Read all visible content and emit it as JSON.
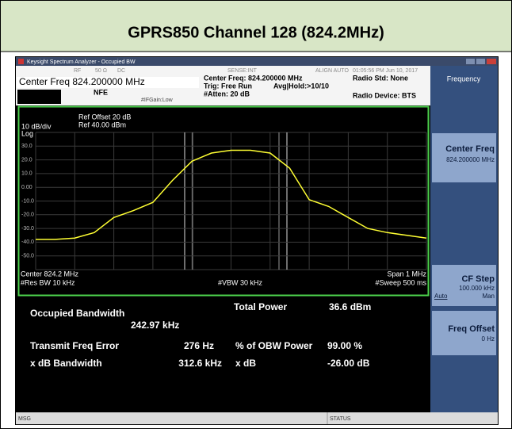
{
  "header": {
    "title": "GPRS850 Channel 128 (824.2MHz)"
  },
  "window": {
    "title": "Keysight Spectrum Analyzer - Occupied BW"
  },
  "info": {
    "rf": "RF",
    "impedance": "50 Ω",
    "coupling": "DC",
    "sense": "SENSE:INT",
    "align": "ALIGN AUTO",
    "time": "01:05:56 PM Jun 10, 2017",
    "center_freq_entry": "Center Freq 824.200000 MHz",
    "nfe": "NFE",
    "if_gain": "#IFGain:Low",
    "center_freq": "Center Freq: 824.200000 MHz",
    "trig": "Trig: Free Run",
    "avg": "Avg|Hold:>10/10",
    "atten": "#Atten: 20 dB",
    "radio_std": "Radio Std: None",
    "radio_device": "Radio Device: BTS"
  },
  "softkeys": {
    "menu": "Frequency",
    "keys": [
      {
        "label": "Center Freq",
        "value": "824.200000 MHz"
      },
      {
        "label": "CF Step",
        "value": "100.000 kHz",
        "options": [
          "Auto",
          "Man"
        ]
      },
      {
        "label": "Freq Offset",
        "value": "0 Hz"
      }
    ]
  },
  "chart_data": {
    "type": "line",
    "ref_offset": "Ref Offset 20 dB",
    "ref_level": "Ref 40.00 dBm",
    "scale": "10 dB/div",
    "scale_type": "Log",
    "center": "Center 824.2 MHz",
    "res_bw": "#Res BW 10 kHz",
    "vbw": "#VBW 30 kHz",
    "span": "Span 1 MHz",
    "sweep": "#Sweep 500 ms",
    "x": [
      823.7,
      823.75,
      823.8,
      823.85,
      823.9,
      823.95,
      824.0,
      824.05,
      824.1,
      824.15,
      824.2,
      824.25,
      824.3,
      824.35,
      824.4,
      824.45,
      824.5,
      824.55,
      824.6,
      824.65,
      824.7
    ],
    "series": [
      {
        "color": "#ffff33",
        "values": [
          -38,
          -38,
          -37,
          -33,
          -22,
          -17,
          -11,
          5,
          19,
          25,
          27,
          27,
          25,
          14,
          -9,
          -14,
          -22,
          -30,
          -33,
          -35,
          -37
        ]
      }
    ],
    "xlim": [
      823.7,
      824.7
    ],
    "ylim": [
      -60,
      40
    ],
    "yticks": [
      {
        "value": 30,
        "label": "30.0"
      },
      {
        "value": 20,
        "label": "20.0"
      },
      {
        "value": 10,
        "label": "10.0"
      },
      {
        "value": 0,
        "label": "0.00"
      },
      {
        "value": -10,
        "label": "-10.0"
      },
      {
        "value": -20,
        "label": "-20.0"
      },
      {
        "value": -30,
        "label": "-30.0"
      },
      {
        "value": -40,
        "label": "-40.0"
      },
      {
        "value": -50,
        "label": "-50.0"
      }
    ],
    "grid": true
  },
  "results": {
    "obw_label": "Occupied Bandwidth",
    "obw_value": "242.97 kHz",
    "total_power_label": "Total Power",
    "total_power_value": "36.6 dBm",
    "freq_error_label": "Transmit Freq Error",
    "freq_error_value": "276 Hz",
    "obw_power_label": "% of OBW Power",
    "obw_power_value": "99.00 %",
    "xdb_bw_label": "x dB Bandwidth",
    "xdb_bw_value": "312.6 kHz",
    "xdb_label": "x dB",
    "xdb_value": "-26.00 dB"
  },
  "status": {
    "msg": "MSG",
    "status": "STATUS"
  }
}
